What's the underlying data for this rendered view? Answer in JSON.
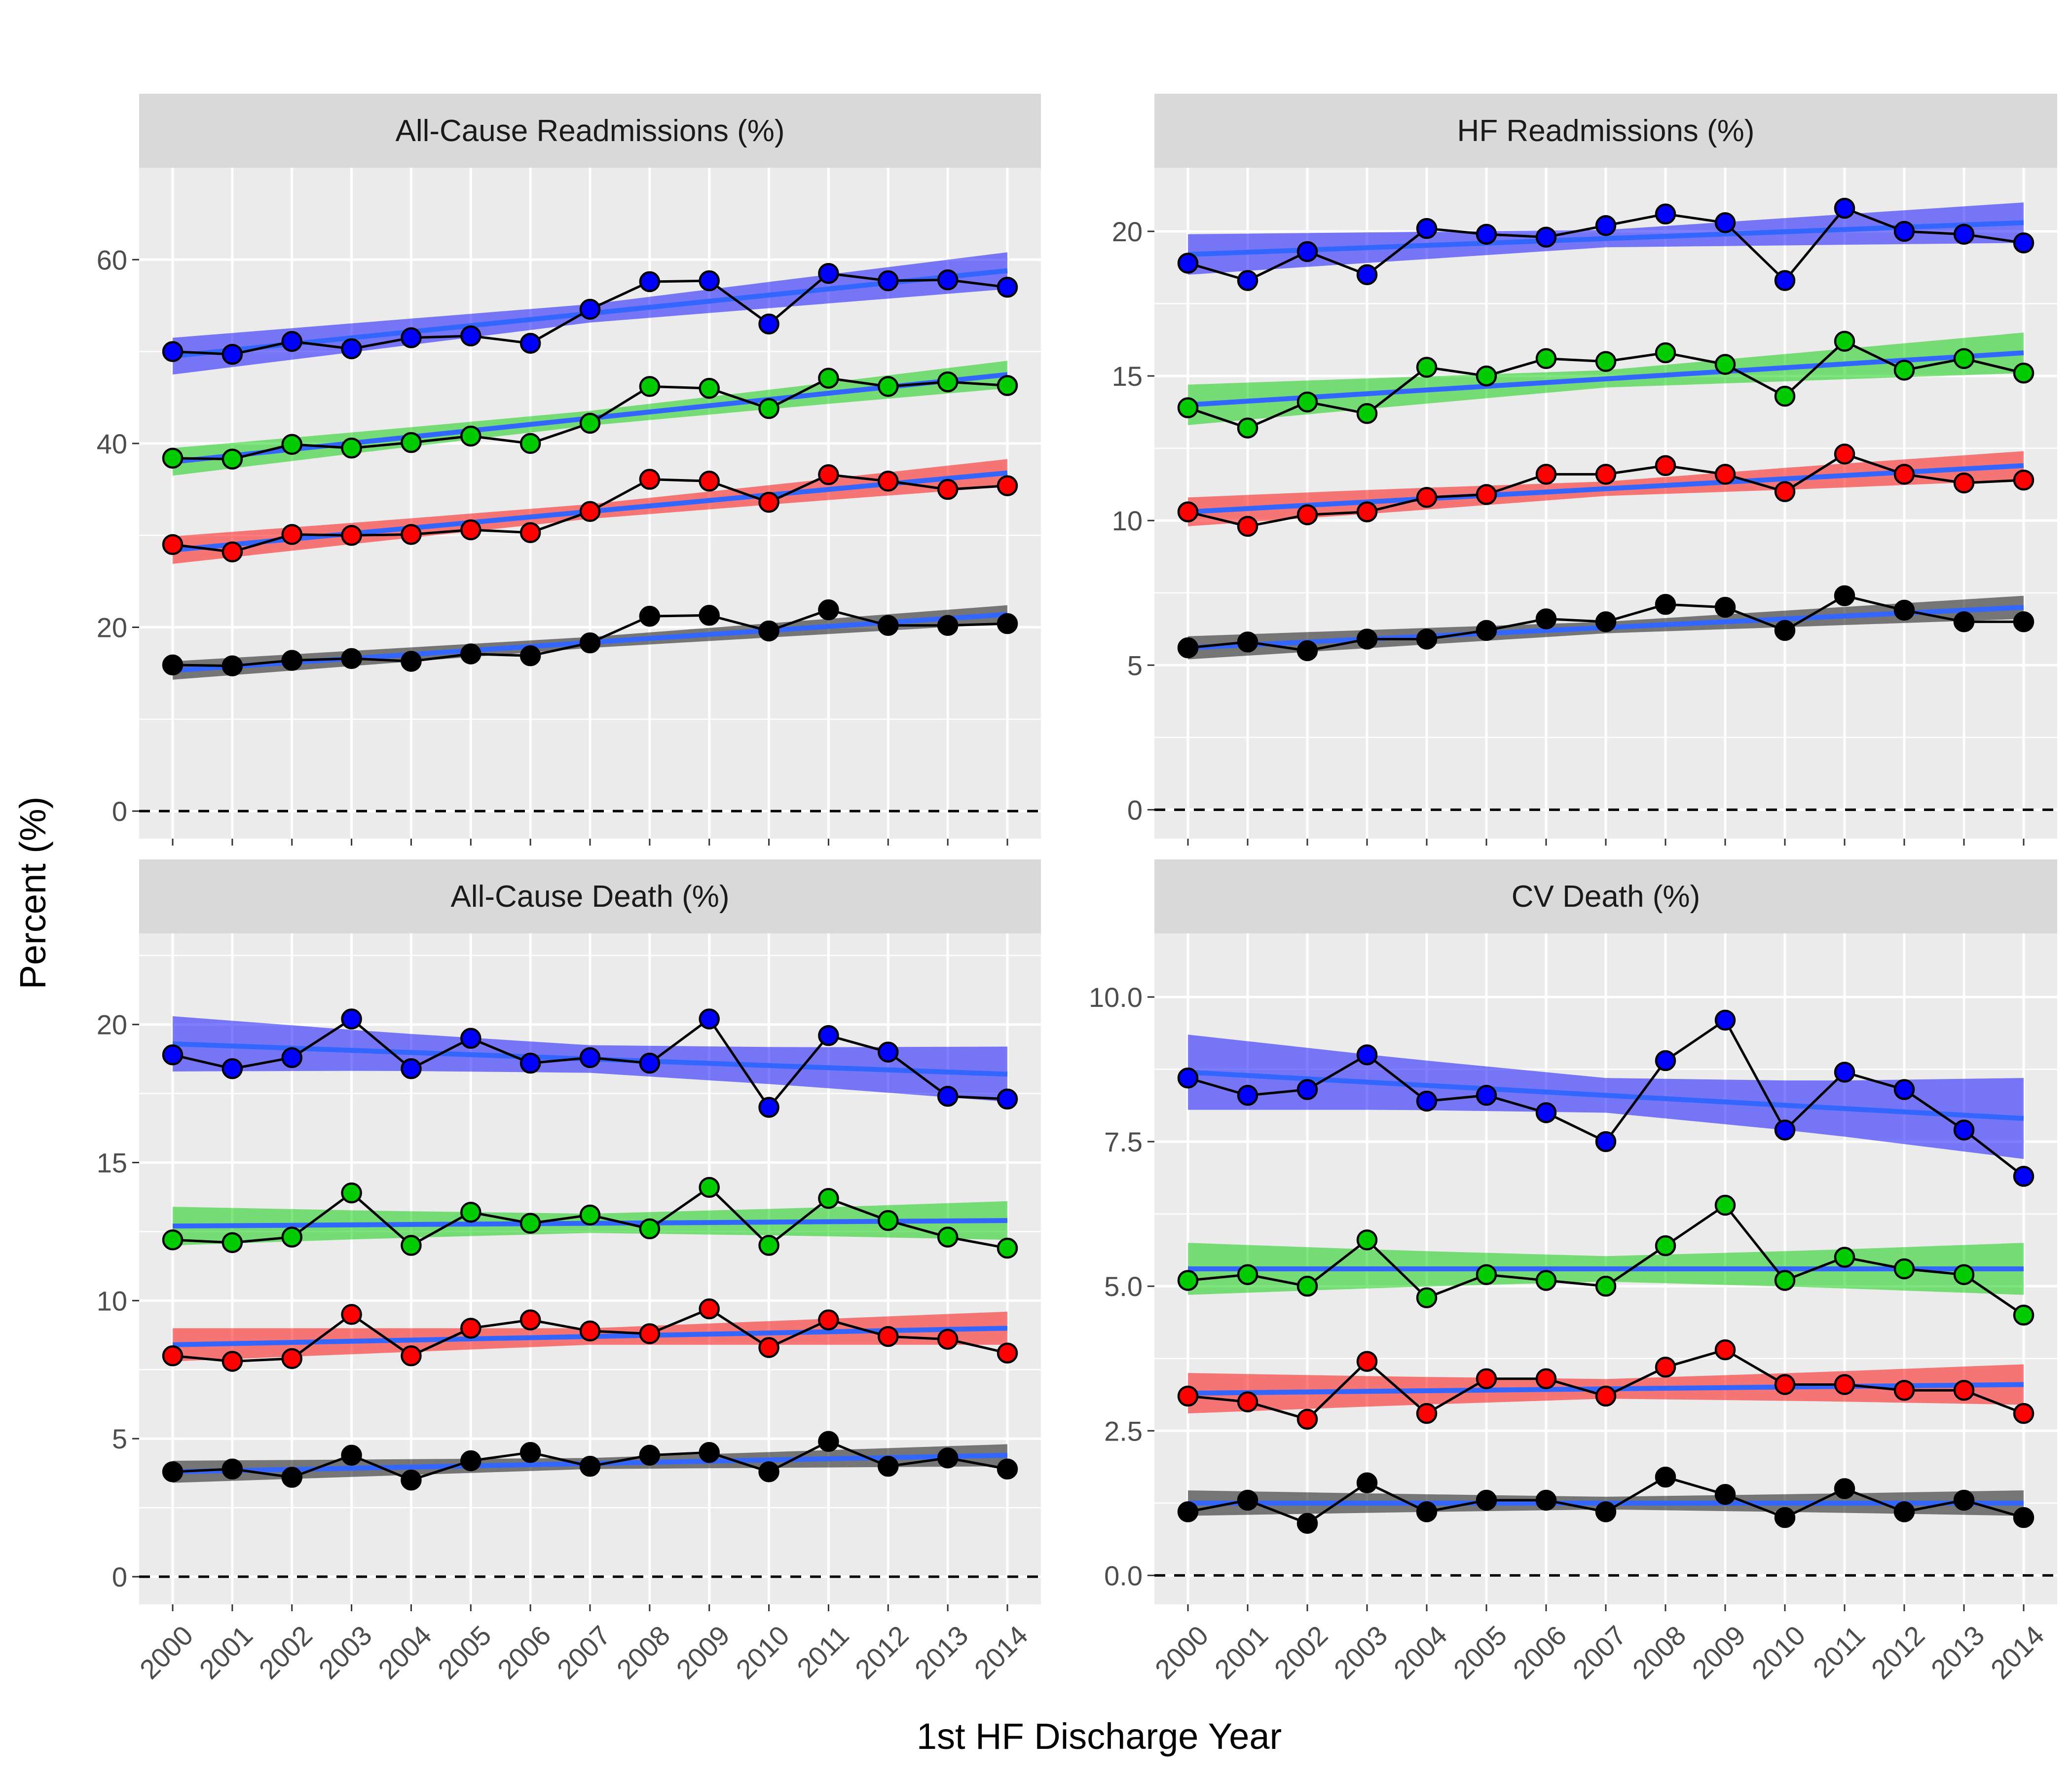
{
  "chart_data": {
    "type": "line",
    "xlabel": "1st HF Discharge Year",
    "ylabel": "Percent (%)",
    "x": [
      2000,
      2001,
      2002,
      2003,
      2004,
      2005,
      2006,
      2007,
      2008,
      2009,
      2010,
      2011,
      2012,
      2013,
      2014
    ],
    "reference_line": {
      "y": 0,
      "style": "dashed"
    },
    "series_colors": [
      "#0000FF",
      "#00CC00",
      "#FF0000",
      "#000000"
    ],
    "trend_line_color": "#3366FF",
    "grid": true,
    "panels": [
      {
        "title": "All-Cause Readmissions (%)",
        "ylim": [
          -3,
          70
        ],
        "yticks": [
          0,
          20,
          40,
          60
        ],
        "ytick_labels": [
          "0",
          "20",
          "40",
          "60"
        ],
        "series": [
          {
            "color": "#0000FF",
            "values": [
              50.0,
              49.7,
              51.1,
              50.3,
              51.5,
              51.7,
              50.9,
              54.6,
              57.6,
              57.7,
              53.0,
              58.5,
              57.7,
              57.8,
              57.0
            ],
            "trend": [
              49.5,
              58.8
            ],
            "band_halfwidth": [
              2.0,
              1.5,
              1.0,
              1.5,
              2.0
            ]
          },
          {
            "color": "#00CC00",
            "values": [
              38.4,
              38.3,
              39.9,
              39.5,
              40.1,
              40.8,
              40.0,
              42.2,
              46.2,
              46.0,
              43.8,
              47.1,
              46.2,
              46.7,
              46.3
            ],
            "trend": [
              38.0,
              47.5
            ],
            "band_halfwidth": [
              1.5,
              1.1,
              0.8,
              1.1,
              1.5
            ]
          },
          {
            "color": "#FF0000",
            "values": [
              29.0,
              28.2,
              30.1,
              30.0,
              30.1,
              30.6,
              30.3,
              32.6,
              36.1,
              35.9,
              33.6,
              36.6,
              35.9,
              35.0,
              35.4
            ],
            "trend": [
              28.4,
              36.8
            ],
            "band_halfwidth": [
              1.5,
              1.1,
              0.8,
              1.1,
              1.5
            ]
          },
          {
            "color": "#000000",
            "values": [
              15.9,
              15.8,
              16.4,
              16.6,
              16.3,
              17.1,
              16.9,
              18.3,
              21.2,
              21.3,
              19.6,
              21.9,
              20.2,
              20.2,
              20.4
            ],
            "trend": [
              15.3,
              21.4
            ],
            "band_halfwidth": [
              1.0,
              0.8,
              0.6,
              0.8,
              1.0
            ]
          }
        ]
      },
      {
        "title": "HF Readmissions (%)",
        "ylim": [
          -1,
          22.2
        ],
        "yticks": [
          0,
          5,
          10,
          15,
          20
        ],
        "ytick_labels": [
          "0",
          "5",
          "10",
          "15",
          "20"
        ],
        "series": [
          {
            "color": "#0000FF",
            "values": [
              18.9,
              18.3,
              19.3,
              18.5,
              20.1,
              19.9,
              19.8,
              20.2,
              20.6,
              20.3,
              18.3,
              20.8,
              20.0,
              19.9,
              19.6
            ],
            "trend": [
              19.2,
              20.3
            ],
            "band_halfwidth": [
              0.7,
              0.5,
              0.3,
              0.5,
              0.7
            ]
          },
          {
            "color": "#00CC00",
            "values": [
              13.9,
              13.2,
              14.1,
              13.7,
              15.3,
              15.0,
              15.6,
              15.5,
              15.8,
              15.4,
              14.3,
              16.2,
              15.2,
              15.6,
              15.1
            ],
            "trend": [
              14.0,
              15.8
            ],
            "band_halfwidth": [
              0.7,
              0.5,
              0.3,
              0.5,
              0.7
            ]
          },
          {
            "color": "#FF0000",
            "values": [
              10.3,
              9.8,
              10.2,
              10.3,
              10.8,
              10.9,
              11.6,
              11.6,
              11.9,
              11.6,
              11.0,
              12.3,
              11.6,
              11.3,
              11.4
            ],
            "trend": [
              10.3,
              11.9
            ],
            "band_halfwidth": [
              0.5,
              0.4,
              0.25,
              0.4,
              0.5
            ]
          },
          {
            "color": "#000000",
            "values": [
              5.6,
              5.8,
              5.5,
              5.9,
              5.9,
              6.2,
              6.6,
              6.5,
              7.1,
              7.0,
              6.2,
              7.4,
              6.9,
              6.5,
              6.5
            ],
            "trend": [
              5.6,
              7.0
            ],
            "band_halfwidth": [
              0.4,
              0.3,
              0.2,
              0.3,
              0.4
            ]
          }
        ]
      },
      {
        "title": "All-Cause Death (%)",
        "ylim": [
          -1,
          23.3
        ],
        "yticks": [
          0,
          5,
          10,
          15,
          20
        ],
        "ytick_labels": [
          "0",
          "5",
          "10",
          "15",
          "20"
        ],
        "series": [
          {
            "color": "#0000FF",
            "values": [
              18.9,
              18.4,
              18.8,
              20.2,
              18.4,
              19.5,
              18.6,
              18.8,
              18.6,
              20.2,
              17.0,
              19.6,
              19.0,
              17.4,
              17.3
            ],
            "trend": [
              19.3,
              18.2
            ],
            "band_halfwidth": [
              1.0,
              0.7,
              0.5,
              0.7,
              1.0
            ]
          },
          {
            "color": "#00CC00",
            "values": [
              12.2,
              12.1,
              12.3,
              13.9,
              12.0,
              13.2,
              12.8,
              13.1,
              12.6,
              14.1,
              12.0,
              13.7,
              12.9,
              12.3,
              11.9
            ],
            "trend": [
              12.7,
              12.9
            ],
            "band_halfwidth": [
              0.7,
              0.5,
              0.35,
              0.5,
              0.7
            ]
          },
          {
            "color": "#FF0000",
            "values": [
              8.0,
              7.8,
              7.9,
              9.5,
              8.0,
              9.0,
              9.3,
              8.9,
              8.8,
              9.7,
              8.3,
              9.3,
              8.7,
              8.6,
              8.1
            ],
            "trend": [
              8.4,
              9.0
            ],
            "band_halfwidth": [
              0.6,
              0.45,
              0.3,
              0.45,
              0.6
            ]
          },
          {
            "color": "#000000",
            "values": [
              3.8,
              3.9,
              3.6,
              4.4,
              3.5,
              4.2,
              4.5,
              4.0,
              4.4,
              4.5,
              3.8,
              4.9,
              4.0,
              4.3,
              3.9
            ],
            "trend": [
              3.8,
              4.4
            ],
            "band_halfwidth": [
              0.4,
              0.3,
              0.2,
              0.3,
              0.4
            ]
          }
        ]
      },
      {
        "title": "CV Death (%)",
        "ylim": [
          -0.5,
          11.1
        ],
        "yticks": [
          0,
          2.5,
          5,
          7.5,
          10
        ],
        "ytick_labels": [
          "0.0",
          "2.5",
          "5.0",
          "7.5",
          "10.0"
        ],
        "series": [
          {
            "color": "#0000FF",
            "values": [
              8.6,
              8.3,
              8.4,
              9.0,
              8.2,
              8.3,
              8.0,
              7.5,
              8.9,
              9.6,
              7.7,
              8.7,
              8.4,
              7.7,
              6.9
            ],
            "trend": [
              8.7,
              7.9
            ],
            "band_halfwidth": [
              0.65,
              0.45,
              0.3,
              0.45,
              0.7
            ]
          },
          {
            "color": "#00CC00",
            "values": [
              5.1,
              5.2,
              5.0,
              5.8,
              4.8,
              5.2,
              5.1,
              5.0,
              5.7,
              6.4,
              5.1,
              5.5,
              5.3,
              5.2,
              4.5
            ],
            "trend": [
              5.3,
              5.3
            ],
            "band_halfwidth": [
              0.45,
              0.32,
              0.22,
              0.32,
              0.45
            ]
          },
          {
            "color": "#FF0000",
            "values": [
              3.1,
              3.0,
              2.7,
              3.7,
              2.8,
              3.4,
              3.4,
              3.1,
              3.6,
              3.9,
              3.3,
              3.3,
              3.2,
              3.2,
              2.8
            ],
            "trend": [
              3.15,
              3.3
            ],
            "band_halfwidth": [
              0.35,
              0.25,
              0.17,
              0.25,
              0.35
            ]
          },
          {
            "color": "#000000",
            "values": [
              1.1,
              1.3,
              0.9,
              1.6,
              1.1,
              1.3,
              1.3,
              1.1,
              1.7,
              1.4,
              1.0,
              1.5,
              1.1,
              1.3,
              1.0
            ],
            "trend": [
              1.25,
              1.25
            ],
            "band_halfwidth": [
              0.22,
              0.16,
              0.11,
              0.16,
              0.22
            ]
          }
        ]
      }
    ]
  }
}
